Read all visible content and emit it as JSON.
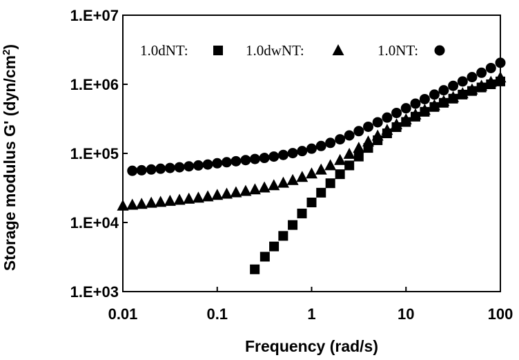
{
  "chart_data": {
    "type": "scatter",
    "xlabel": "Frequency (rad/s)",
    "ylabel": "Storage modulus G' (dyn/cm",
    "ylabel_superscript": "2",
    "ylabel_suffix": ")",
    "x_scale": "log",
    "y_scale": "log",
    "xlim": [
      0.01,
      100
    ],
    "ylim": [
      1000,
      10000000
    ],
    "x_ticks": [
      0.01,
      0.1,
      1,
      10,
      100
    ],
    "x_tick_labels": [
      "0.01",
      "0.1",
      "1",
      "10",
      "100"
    ],
    "y_ticks": [
      1000,
      10000,
      100000,
      1000000,
      10000000
    ],
    "y_tick_labels": [
      "1.E+03",
      "1.E+04",
      "1.E+05",
      "1.E+06",
      "1.E+07"
    ],
    "grid": false,
    "legend_position": "top",
    "series": [
      {
        "name": "1.0dNT:",
        "marker": "square",
        "x": [
          0.25,
          0.32,
          0.4,
          0.5,
          0.63,
          0.79,
          1.0,
          1.26,
          1.58,
          2.0,
          2.51,
          3.16,
          3.98,
          5.01,
          6.31,
          7.94,
          10.0,
          12.6,
          15.8,
          20.0,
          25.1,
          31.6,
          39.8,
          50.1,
          63.1,
          79.4,
          100
        ],
        "y": [
          2100,
          3200,
          4500,
          6400,
          9200,
          13500,
          19500,
          27000,
          37000,
          50000,
          67000,
          90000,
          120000,
          155000,
          195000,
          240000,
          285000,
          340000,
          400000,
          470000,
          540000,
          620000,
          710000,
          800000,
          900000,
          1000000,
          1100000
        ]
      },
      {
        "name": "1.0dwNT:",
        "marker": "triangle",
        "x": [
          0.01,
          0.0126,
          0.0158,
          0.02,
          0.0251,
          0.0316,
          0.0398,
          0.0501,
          0.0631,
          0.0794,
          0.1,
          0.126,
          0.158,
          0.2,
          0.251,
          0.316,
          0.398,
          0.501,
          0.631,
          0.794,
          1.0,
          1.26,
          1.58,
          2.0,
          2.51,
          3.16,
          3.98,
          5.01,
          6.31,
          7.94,
          10.0,
          12.6,
          15.8,
          20.0,
          25.1,
          31.6,
          39.8,
          50.1,
          63.1,
          79.4,
          100
        ],
        "y": [
          17500,
          18000,
          18500,
          19200,
          19800,
          20500,
          21200,
          22000,
          22800,
          23800,
          25000,
          26000,
          27200,
          28500,
          30000,
          32000,
          34500,
          37500,
          41000,
          45500,
          51000,
          58000,
          67000,
          80000,
          98000,
          120000,
          148000,
          180000,
          218000,
          262000,
          310000,
          365000,
          425000,
          495000,
          570000,
          650000,
          740000,
          840000,
          950000,
          1080000,
          1250000
        ]
      },
      {
        "name": "1.0NT:",
        "marker": "circle",
        "x": [
          0.0126,
          0.0158,
          0.02,
          0.0251,
          0.0316,
          0.0398,
          0.0501,
          0.0631,
          0.0794,
          0.1,
          0.126,
          0.158,
          0.2,
          0.251,
          0.316,
          0.398,
          0.501,
          0.631,
          0.794,
          1.0,
          1.26,
          1.58,
          2.0,
          2.51,
          3.16,
          3.98,
          5.01,
          6.31,
          7.94,
          10.0,
          12.6,
          15.8,
          20.0,
          25.1,
          31.6,
          39.8,
          50.1,
          63.1,
          79.4,
          100
        ],
        "y": [
          56000,
          57000,
          58500,
          60000,
          61500,
          63000,
          65000,
          67000,
          69000,
          72000,
          74500,
          77000,
          80000,
          83000,
          86000,
          90000,
          95000,
          101000,
          108000,
          117000,
          128000,
          142000,
          160000,
          182000,
          210000,
          243000,
          282000,
          330000,
          385000,
          450000,
          525000,
          610000,
          710000,
          820000,
          950000,
          1100000,
          1270000,
          1470000,
          1720000,
          2050000
        ]
      }
    ]
  }
}
